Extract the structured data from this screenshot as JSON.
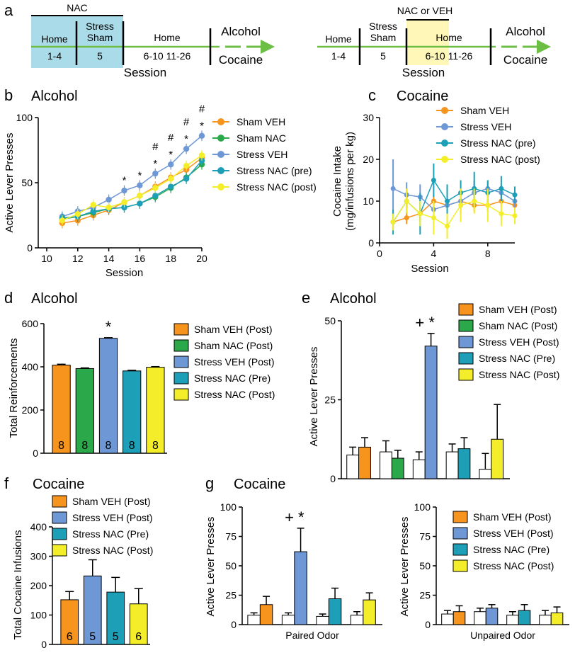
{
  "colors": {
    "orange": "#F7941D",
    "green": "#2BA84A",
    "blue": "#6E97D6",
    "teal": "#1E9FB8",
    "yellow": "#F4EE2A",
    "white": "#ffffff",
    "timeline_green": "#6DBE45",
    "nac_box": "#A9DCE8",
    "nac_veh_box": "#FFF7B8"
  },
  "chart_data": [
    {
      "id": "a",
      "type": "timeline",
      "letter": "a",
      "left": {
        "box_label": "NAC",
        "segments": [
          {
            "name": "Home",
            "days": "1-4"
          },
          {
            "name": "Stress\nSham",
            "days": "5"
          },
          {
            "name": "Home",
            "days": "6-10   11-26"
          }
        ],
        "session_label": "Session",
        "arrow_top": "Alcohol",
        "arrow_bottom": "Cocaine"
      },
      "right": {
        "box_label": "NAC or VEH",
        "segments": [
          {
            "name": "Home",
            "days": "1-4"
          },
          {
            "name": "Stress\nSham",
            "days": "5"
          },
          {
            "name": "Home",
            "days": "6-10   11-26"
          }
        ],
        "session_label": "Session",
        "arrow_top": "Alcohol",
        "arrow_bottom": "Cocaine"
      }
    },
    {
      "id": "b",
      "type": "line",
      "letter": "b",
      "title": "Alcohol",
      "xlabel": "Session",
      "ylabel": "Active Lever Presses",
      "xlim": [
        10,
        20
      ],
      "ylim": [
        0,
        100
      ],
      "xticks": [
        10,
        12,
        14,
        16,
        18,
        20
      ],
      "yticks": [
        0,
        50,
        100
      ],
      "x": [
        11,
        12,
        13,
        14,
        15,
        16,
        17,
        18,
        19,
        20
      ],
      "series": [
        {
          "name": "Sham VEH",
          "color": "orange",
          "values": [
            19,
            21,
            25,
            29,
            35,
            40,
            47,
            54,
            60,
            69
          ]
        },
        {
          "name": "Sham NAC",
          "color": "green",
          "values": [
            22,
            24,
            27,
            30,
            31,
            34,
            39,
            46,
            54,
            64
          ]
        },
        {
          "name": "Stress VEH",
          "color": "blue",
          "values": [
            24,
            28,
            31,
            37,
            44,
            48,
            57,
            64,
            76,
            86
          ]
        },
        {
          "name": "Stress NAC (pre)",
          "color": "teal",
          "values": [
            23,
            24,
            28,
            30,
            31,
            34,
            40,
            47,
            53,
            67
          ]
        },
        {
          "name": "Stress NAC (post)",
          "color": "yellow",
          "values": [
            21,
            26,
            33,
            31,
            35,
            40,
            46,
            53,
            63,
            71
          ]
        }
      ],
      "error": 4,
      "annotations": [
        {
          "x": 15,
          "marks": [
            "*"
          ]
        },
        {
          "x": 16,
          "marks": [
            "*"
          ]
        },
        {
          "x": 17,
          "marks": [
            "#",
            "*"
          ]
        },
        {
          "x": 18,
          "marks": [
            "#",
            "*"
          ]
        },
        {
          "x": 19,
          "marks": [
            "#",
            "*"
          ]
        },
        {
          "x": 20,
          "marks": [
            "#",
            "*"
          ]
        }
      ]
    },
    {
      "id": "c",
      "type": "line",
      "letter": "c",
      "title": "Cocaine",
      "xlabel": "Session",
      "ylabel": "Cocaine Intake\n(mg/infusions per kg)",
      "xlim": [
        0,
        10
      ],
      "ylim": [
        0,
        30
      ],
      "xticks": [
        0,
        4,
        8
      ],
      "yticks": [
        0,
        10,
        20,
        30
      ],
      "x": [
        1,
        2,
        3,
        4,
        5,
        6,
        7,
        8,
        9,
        10
      ],
      "series": [
        {
          "name": "Sham VEH",
          "color": "orange",
          "values": [
            5,
            6,
            7,
            10,
            9,
            10,
            9,
            9,
            10,
            9
          ],
          "errors": [
            1.5,
            1.5,
            1.5,
            1.5,
            1.5,
            1.5,
            1.5,
            1.5,
            1.5,
            1.5
          ]
        },
        {
          "name": "Stress VEH",
          "color": "blue",
          "values": [
            13,
            11.5,
            11,
            8,
            9,
            10,
            12,
            13,
            12,
            10
          ],
          "errors": [
            7,
            3,
            3,
            2,
            2,
            3,
            3,
            2,
            2,
            2
          ]
        },
        {
          "name": "Stress NAC (pre)",
          "color": "teal",
          "values": [
            5,
            10,
            7,
            15,
            10,
            12,
            13,
            12,
            13,
            11.5
          ],
          "errors": [
            3,
            3,
            5,
            4,
            4,
            3,
            4,
            3,
            3,
            2
          ]
        },
        {
          "name": "Stress NAC (post)",
          "color": "yellow",
          "values": [
            5,
            10,
            7,
            6,
            4,
            9,
            10,
            9,
            7,
            6.5
          ],
          "errors": [
            2,
            3,
            3,
            4,
            3,
            4,
            3,
            4,
            3,
            2
          ]
        }
      ]
    },
    {
      "id": "d",
      "type": "bar",
      "letter": "d",
      "title": "Alcohol",
      "ylabel": "Total Reinforcements",
      "ylim": [
        0,
        600
      ],
      "yticks": [
        0,
        200,
        400,
        600
      ],
      "bars": [
        {
          "name": "Sham VEH (Post)",
          "color": "orange",
          "value": 408,
          "err": 4,
          "n": "8",
          "nTextColor": "white"
        },
        {
          "name": "Sham NAC (Post)",
          "color": "green",
          "value": 392,
          "err": 3,
          "n": "8",
          "nTextColor": "white"
        },
        {
          "name": "Stress VEH (Post)",
          "color": "blue",
          "value": 532,
          "err": 3,
          "n": "8",
          "nTextColor": "white"
        },
        {
          "name": "Stress NAC (Pre)",
          "color": "teal",
          "value": 381,
          "err": 3,
          "n": "8",
          "nTextColor": "white"
        },
        {
          "name": "Stress NAC (Post)",
          "color": "yellow",
          "value": 398,
          "err": 3,
          "n": "8",
          "nTextColor": "black"
        }
      ],
      "sig": [
        {
          "bar": 2,
          "text": "*"
        }
      ]
    },
    {
      "id": "e",
      "type": "bar",
      "letter": "e",
      "title": "Alcohol",
      "ylabel": "Active Lever Presses",
      "ylim": [
        0,
        50
      ],
      "yticks": [
        0,
        25,
        50
      ],
      "legend": [
        {
          "name": "Sham VEH (Post)",
          "color": "orange"
        },
        {
          "name": "Sham NAC (Post)",
          "color": "green"
        },
        {
          "name": "Stress VEH (Post)",
          "color": "blue"
        },
        {
          "name": "Stress NAC (Pre)",
          "color": "teal"
        },
        {
          "name": "Stress NAC (Post)",
          "color": "yellow"
        }
      ],
      "pairs": [
        {
          "unpaired": 7.5,
          "unpaired_err": 2.5,
          "paired": 10,
          "paired_err": 3,
          "color": "orange"
        },
        {
          "unpaired": 8.5,
          "unpaired_err": 3.5,
          "paired": 6.5,
          "paired_err": 2.5,
          "color": "green"
        },
        {
          "unpaired": 6,
          "unpaired_err": 2.5,
          "paired": 42,
          "paired_err": 4,
          "color": "blue"
        },
        {
          "unpaired": 8.5,
          "unpaired_err": 2.5,
          "paired": 9.5,
          "paired_err": 3.5,
          "color": "teal"
        },
        {
          "unpaired": 3,
          "unpaired_err": 5,
          "paired": 12.5,
          "paired_err": 11,
          "color": "yellow"
        }
      ],
      "sig": [
        {
          "pair": 2,
          "text": "+*"
        }
      ]
    },
    {
      "id": "f",
      "type": "bar",
      "letter": "f",
      "title": "Cocaine",
      "ylabel": "Total Cocaine Infusions",
      "ylim": [
        0,
        400
      ],
      "yticks": [
        0,
        100,
        200,
        300,
        400
      ],
      "bars": [
        {
          "name": "Sham VEH (Post)",
          "color": "orange",
          "value": 152,
          "err": 28,
          "n": "6",
          "nTextColor": "white"
        },
        {
          "name": "Stress VEH (Post)",
          "color": "blue",
          "value": 233,
          "err": 55,
          "n": "5",
          "nTextColor": "white"
        },
        {
          "name": "Stress NAC (Pre)",
          "color": "teal",
          "value": 178,
          "err": 50,
          "n": "5",
          "nTextColor": "white"
        },
        {
          "name": "Stress NAC (Post)",
          "color": "yellow",
          "value": 138,
          "err": 52,
          "n": "6",
          "nTextColor": "black"
        }
      ]
    },
    {
      "id": "g1",
      "type": "bar",
      "letter": "g",
      "title": "Cocaine",
      "ylabel": "Active Lever Presses",
      "xlabel": "Paired Odor",
      "ylim": [
        0,
        100
      ],
      "yticks": [
        0,
        25,
        50,
        75,
        100
      ],
      "pairs": [
        {
          "unpaired": 8,
          "unpaired_err": 2,
          "paired": 17,
          "paired_err": 7,
          "color": "orange"
        },
        {
          "unpaired": 8,
          "unpaired_err": 2,
          "paired": 62,
          "paired_err": 20,
          "color": "blue"
        },
        {
          "unpaired": 7,
          "unpaired_err": 2,
          "paired": 22,
          "paired_err": 9,
          "color": "teal"
        },
        {
          "unpaired": 8,
          "unpaired_err": 3,
          "paired": 21,
          "paired_err": 6,
          "color": "yellow"
        }
      ],
      "sig": [
        {
          "pair": 1,
          "text": "+*"
        }
      ]
    },
    {
      "id": "g2",
      "type": "bar",
      "ylabel": "Active Lever Presses",
      "xlabel": "Unpaired Odor",
      "ylim": [
        0,
        100
      ],
      "yticks": [
        0,
        25,
        50,
        75,
        100
      ],
      "legend": [
        {
          "name": "Sham VEH (Post)",
          "color": "orange"
        },
        {
          "name": "Stress VEH (Post)",
          "color": "blue"
        },
        {
          "name": "Stress NAC (Pre)",
          "color": "teal"
        },
        {
          "name": "Stress NAC (Post)",
          "color": "yellow"
        }
      ],
      "pairs": [
        {
          "unpaired": 9,
          "unpaired_err": 3,
          "paired": 11,
          "paired_err": 5,
          "color": "orange"
        },
        {
          "unpaired": 11,
          "unpaired_err": 3,
          "paired": 14,
          "paired_err": 3,
          "color": "blue"
        },
        {
          "unpaired": 8,
          "unpaired_err": 3,
          "paired": 12,
          "paired_err": 5,
          "color": "teal"
        },
        {
          "unpaired": 8,
          "unpaired_err": 4,
          "paired": 10,
          "paired_err": 5,
          "color": "yellow"
        }
      ]
    }
  ]
}
